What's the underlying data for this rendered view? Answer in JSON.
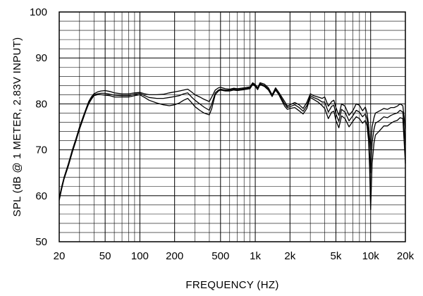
{
  "chart_data": {
    "type": "line",
    "title": "",
    "xlabel": "FREQUENCY  (HZ)",
    "ylabel": "SPL (dB @ 1 METER, 2.83V INPUT)",
    "x_scale": "log",
    "xlim": [
      20,
      20000
    ],
    "ylim": [
      50,
      100
    ],
    "grid": true,
    "x_ticks": [
      {
        "value": 20,
        "label": "20"
      },
      {
        "value": 50,
        "label": "50"
      },
      {
        "value": 100,
        "label": "100"
      },
      {
        "value": 200,
        "label": "200"
      },
      {
        "value": 500,
        "label": "500"
      },
      {
        "value": 1000,
        "label": "1k"
      },
      {
        "value": 2000,
        "label": "2k"
      },
      {
        "value": 5000,
        "label": "5k"
      },
      {
        "value": 10000,
        "label": "10k"
      },
      {
        "value": 20000,
        "label": "20k"
      }
    ],
    "y_ticks": [
      {
        "value": 50,
        "label": "50"
      },
      {
        "value": 60,
        "label": "60"
      },
      {
        "value": 70,
        "label": "70"
      },
      {
        "value": 80,
        "label": "80"
      },
      {
        "value": 90,
        "label": "90"
      },
      {
        "value": 100,
        "label": "100"
      }
    ],
    "line_color": "#000000",
    "series": [
      {
        "x": [
          20,
          21,
          22,
          24,
          26,
          28,
          30,
          32,
          34,
          36,
          38,
          40,
          43,
          46,
          50,
          55,
          60,
          70,
          80,
          90,
          100,
          110,
          120,
          140,
          160,
          180,
          200,
          220,
          240,
          260,
          280,
          300,
          330,
          360,
          400,
          420,
          450,
          480,
          500,
          550,
          600,
          650,
          700,
          800,
          900,
          950,
          1000,
          1050,
          1100,
          1200,
          1300,
          1400,
          1500,
          1600,
          1800,
          1900,
          2000,
          2200,
          2400,
          2600,
          2800,
          3000,
          3200,
          3500,
          3800,
          4000,
          4300,
          4600,
          4800,
          5000,
          5300,
          5600,
          6000,
          6500,
          7000,
          7500,
          8000,
          8500,
          9000,
          9300,
          9600,
          9800,
          10000,
          10300,
          10700,
          11000,
          12000,
          13000,
          14000,
          15000,
          16000,
          17000,
          18000,
          19000,
          20000
        ],
        "y": [
          59.5,
          62,
          64,
          67,
          70,
          72.5,
          75,
          77,
          78.8,
          80.5,
          81.5,
          82.2,
          82.6,
          82.8,
          82.9,
          82.7,
          82.4,
          82.2,
          82.2,
          82.4,
          82.5,
          82.2,
          82,
          82,
          82.1,
          82.4,
          82.6,
          82.8,
          83,
          83.2,
          82.6,
          82,
          81.5,
          81,
          80.5,
          81.5,
          83,
          83.5,
          83.6,
          83.3,
          83.2,
          83.4,
          83.3,
          83.5,
          83.7,
          84.6,
          84.2,
          83.5,
          84.6,
          84.3,
          83.5,
          82,
          83.5,
          82.5,
          80.5,
          79.5,
          79.8,
          80.3,
          79.8,
          79,
          80.3,
          82.2,
          81.8,
          81.5,
          81.2,
          81.5,
          79.5,
          80.5,
          80.8,
          79.2,
          77.5,
          80,
          79.5,
          77.5,
          78.5,
          80,
          79.7,
          78.5,
          79.3,
          78,
          75.5,
          72.5,
          70,
          75,
          77,
          78,
          78.5,
          79,
          78.8,
          79.2,
          79.2,
          79.5,
          80,
          79.6,
          74.5
        ]
      },
      {
        "x": [
          20,
          21,
          22,
          24,
          26,
          28,
          30,
          32,
          34,
          36,
          38,
          40,
          43,
          46,
          50,
          55,
          60,
          70,
          80,
          90,
          100,
          110,
          120,
          140,
          160,
          180,
          200,
          220,
          240,
          260,
          280,
          300,
          330,
          360,
          400,
          420,
          450,
          480,
          500,
          550,
          600,
          650,
          700,
          800,
          900,
          950,
          1000,
          1050,
          1100,
          1200,
          1300,
          1400,
          1500,
          1600,
          1800,
          1900,
          2000,
          2200,
          2400,
          2600,
          2800,
          3000,
          3200,
          3500,
          3800,
          4000,
          4300,
          4600,
          4800,
          5000,
          5300,
          5600,
          6000,
          6500,
          7000,
          7500,
          8000,
          8500,
          9000,
          9300,
          9600,
          9800,
          10000,
          10300,
          10700,
          11000,
          12000,
          13000,
          14000,
          15000,
          16000,
          17000,
          18000,
          19000,
          20000
        ],
        "y": [
          59.3,
          61.8,
          63.8,
          66.8,
          69.8,
          72.3,
          74.8,
          76.8,
          78.6,
          80.3,
          81.3,
          82,
          82.2,
          82.3,
          82.3,
          82.1,
          81.9,
          81.8,
          81.8,
          82.1,
          82.3,
          81.8,
          81.4,
          81.2,
          81.2,
          81.4,
          81.6,
          81.8,
          82.2,
          82.4,
          81.5,
          80.8,
          80,
          79.3,
          78.6,
          80,
          82.4,
          83,
          83.2,
          83,
          83,
          83.2,
          83.1,
          83.3,
          83.5,
          84.4,
          84,
          83.3,
          84.4,
          84,
          83.2,
          81.8,
          83.2,
          82.2,
          80,
          79.2,
          79.4,
          79.8,
          79.2,
          78.4,
          79.6,
          81.8,
          81.4,
          81,
          80.4,
          80.4,
          78.2,
          79.5,
          79.7,
          77.8,
          76.2,
          78.8,
          78.2,
          76.3,
          77.4,
          78.6,
          78.2,
          77.2,
          77.8,
          76.6,
          73.5,
          69,
          65,
          71.5,
          74.5,
          75.8,
          76.4,
          77.2,
          77,
          77.5,
          77.8,
          78,
          78.6,
          78.2,
          71
        ]
      },
      {
        "x": [
          20,
          21,
          22,
          24,
          26,
          28,
          30,
          32,
          34,
          36,
          38,
          40,
          43,
          46,
          50,
          55,
          60,
          70,
          80,
          90,
          100,
          110,
          120,
          140,
          160,
          180,
          200,
          220,
          240,
          260,
          280,
          300,
          330,
          360,
          400,
          420,
          450,
          480,
          500,
          550,
          600,
          650,
          700,
          800,
          900,
          950,
          1000,
          1050,
          1100,
          1200,
          1300,
          1400,
          1500,
          1600,
          1800,
          1900,
          2000,
          2200,
          2400,
          2600,
          2800,
          3000,
          3200,
          3500,
          3800,
          4000,
          4300,
          4600,
          4800,
          5000,
          5300,
          5600,
          6000,
          6500,
          7000,
          7500,
          8000,
          8500,
          9000,
          9300,
          9600,
          9800,
          10000,
          10300,
          10700,
          11000,
          12000,
          13000,
          14000,
          15000,
          16000,
          17000,
          18000,
          19000,
          20000
        ],
        "y": [
          59,
          61.5,
          63.6,
          66.5,
          69.5,
          72,
          74.5,
          76.5,
          78.4,
          80,
          81,
          81.8,
          82,
          82,
          81.9,
          81.8,
          81.5,
          81.5,
          81.5,
          81.8,
          82,
          81.4,
          80.8,
          80.2,
          79.8,
          79.6,
          79.8,
          80.2,
          80.8,
          81.2,
          80.3,
          79.4,
          78.6,
          78,
          77.6,
          79,
          82,
          82.8,
          83,
          82.8,
          82.8,
          83,
          82.9,
          83.1,
          83.3,
          84.2,
          83.8,
          83.1,
          84.2,
          83.8,
          83,
          81.6,
          83,
          82,
          79.5,
          78.8,
          79,
          79.2,
          78.5,
          77.8,
          79,
          81.4,
          81,
          80.4,
          79.6,
          79,
          76.8,
          78.2,
          78.4,
          76.4,
          74.8,
          77.4,
          76.8,
          75,
          76.2,
          77.2,
          76.8,
          75.8,
          76.4,
          75.2,
          72,
          66,
          57,
          67,
          71.5,
          73.2,
          74.2,
          75.2,
          75.2,
          75.8,
          76.2,
          76.4,
          77,
          76.8,
          67
        ]
      }
    ]
  }
}
